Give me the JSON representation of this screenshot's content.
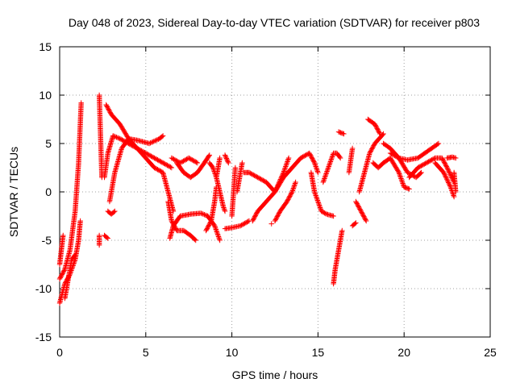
{
  "chart_data": {
    "type": "scatter",
    "title": "Day 048 of 2023, Sidereal Day-to-day VTEC variation (SDTVAR) for receiver p803",
    "xlabel": "GPS time / hours",
    "ylabel": "SDTVAR / TECUs",
    "xlim": [
      0,
      25
    ],
    "ylim": [
      -15,
      15
    ],
    "xticks": [
      "0",
      "5",
      "10",
      "15",
      "20",
      "25"
    ],
    "yticks": [
      "15",
      "10",
      "5",
      "0",
      "-5",
      "-10",
      "-15"
    ],
    "grid": true,
    "marker": "plus",
    "color": "#ff0000",
    "segments": [
      [
        [
          0.0,
          -9
        ],
        [
          0.3,
          -8
        ],
        [
          0.6,
          -6
        ],
        [
          0.9,
          -2
        ],
        [
          1.1,
          3
        ],
        [
          1.25,
          9.2
        ]
      ],
      [
        [
          0.0,
          -11.5
        ],
        [
          0.3,
          -9.5
        ],
        [
          0.6,
          -8.5
        ],
        [
          0.9,
          -7
        ],
        [
          1.1,
          -5
        ],
        [
          1.2,
          -3
        ]
      ],
      [
        [
          0.0,
          -7.5
        ],
        [
          0.1,
          -6
        ],
        [
          0.2,
          -4.5
        ]
      ],
      [
        [
          0.3,
          -11
        ],
        [
          0.5,
          -9
        ],
        [
          0.7,
          -7
        ],
        [
          0.9,
          -6.5
        ]
      ],
      [
        [
          2.3,
          10
        ],
        [
          2.45,
          1.5
        ]
      ],
      [
        [
          2.3,
          -4.5
        ],
        [
          2.3,
          -5.5
        ]
      ],
      [
        [
          2.6,
          -4.5
        ],
        [
          2.8,
          -4.8
        ]
      ],
      [
        [
          2.8,
          -2
        ],
        [
          3.0,
          -2.3
        ],
        [
          3.2,
          -2
        ]
      ],
      [
        [
          2.6,
          1.5
        ],
        [
          2.8,
          4
        ],
        [
          3.1,
          5.8
        ],
        [
          3.5,
          5.5
        ],
        [
          4.0,
          5
        ],
        [
          5.0,
          4
        ],
        [
          6.0,
          3
        ],
        [
          6.5,
          2.5
        ]
      ],
      [
        [
          2.7,
          9
        ],
        [
          3.0,
          8
        ],
        [
          3.5,
          7
        ],
        [
          4.0,
          5.5
        ],
        [
          4.5,
          4.5
        ],
        [
          5.0,
          3.5
        ],
        [
          5.5,
          2.5
        ],
        [
          6.0,
          2
        ],
        [
          6.3,
          0
        ],
        [
          6.6,
          -2
        ]
      ],
      [
        [
          2.9,
          -1
        ],
        [
          3.2,
          2
        ],
        [
          3.6,
          4.5
        ],
        [
          4.0,
          5.5
        ],
        [
          4.6,
          5.3
        ],
        [
          5.2,
          5
        ],
        [
          5.8,
          5.5
        ],
        [
          6.0,
          5.8
        ]
      ],
      [
        [
          6.3,
          -1
        ],
        [
          6.5,
          -3
        ],
        [
          6.8,
          -4
        ],
        [
          7.2,
          -4
        ],
        [
          7.6,
          -4.5
        ],
        [
          7.9,
          -5
        ]
      ],
      [
        [
          6.4,
          -4.8
        ],
        [
          6.6,
          -3.5
        ],
        [
          7.0,
          -2.5
        ],
        [
          7.6,
          -2.3
        ],
        [
          8.2,
          -2.2
        ],
        [
          8.6,
          -2.5
        ]
      ],
      [
        [
          6.5,
          3.5
        ],
        [
          7.0,
          3
        ],
        [
          7.5,
          3.5
        ],
        [
          8.0,
          3
        ]
      ],
      [
        [
          6.8,
          3
        ],
        [
          7.2,
          2
        ],
        [
          7.6,
          1.5
        ],
        [
          8.0,
          2
        ],
        [
          8.4,
          3
        ],
        [
          8.7,
          3.8
        ]
      ],
      [
        [
          8.6,
          -2.5
        ],
        [
          9.0,
          -3.5
        ],
        [
          9.3,
          -5
        ]
      ],
      [
        [
          8.5,
          -4
        ],
        [
          8.8,
          -3
        ],
        [
          9.0,
          -1
        ],
        [
          9.1,
          0.5
        ]
      ],
      [
        [
          8.7,
          3
        ],
        [
          8.9,
          2.5
        ],
        [
          9.1,
          1.5
        ],
        [
          9.3,
          0
        ],
        [
          9.5,
          -1.5
        ],
        [
          9.6,
          -2
        ]
      ],
      [
        [
          9.1,
          1.5
        ],
        [
          9.3,
          3.5
        ]
      ],
      [
        [
          9.6,
          3.8
        ],
        [
          9.8,
          3
        ]
      ],
      [
        [
          9.6,
          -3.8
        ],
        [
          10.0,
          -3.7
        ],
        [
          10.5,
          -3.5
        ],
        [
          11.0,
          -3
        ]
      ],
      [
        [
          10.0,
          -2.5
        ],
        [
          10.1,
          0
        ],
        [
          10.2,
          2.5
        ]
      ],
      [
        [
          10.3,
          0
        ],
        [
          10.5,
          2
        ],
        [
          10.6,
          3
        ]
      ],
      [
        [
          10.7,
          2
        ],
        [
          11.0,
          2
        ],
        [
          11.5,
          1.5
        ],
        [
          12.0,
          1
        ],
        [
          12.5,
          0
        ],
        [
          13.0,
          2
        ],
        [
          13.3,
          3.5
        ]
      ],
      [
        [
          11.2,
          -3
        ],
        [
          11.5,
          -2
        ],
        [
          12.0,
          -1
        ],
        [
          12.5,
          0
        ],
        [
          13.0,
          1.5
        ],
        [
          13.5,
          2.5
        ],
        [
          14.0,
          3.5
        ],
        [
          14.5,
          4
        ],
        [
          14.8,
          3
        ]
      ],
      [
        [
          12.5,
          -3
        ],
        [
          12.8,
          -2
        ],
        [
          13.2,
          -1
        ],
        [
          13.5,
          0
        ],
        [
          13.7,
          1
        ]
      ],
      [
        [
          12.3,
          -3.3
        ]
      ],
      [
        [
          14.8,
          3
        ],
        [
          15.0,
          2
        ]
      ],
      [
        [
          14.6,
          2
        ],
        [
          14.8,
          0
        ],
        [
          15.0,
          -1
        ],
        [
          15.2,
          -2
        ],
        [
          15.5,
          -2.3
        ],
        [
          15.9,
          -2.5
        ]
      ],
      [
        [
          15.3,
          1
        ],
        [
          15.6,
          2.5
        ],
        [
          15.9,
          4
        ],
        [
          16.1,
          4
        ],
        [
          16.3,
          3.5
        ]
      ],
      [
        [
          15.9,
          -9.5
        ],
        [
          16.0,
          -8
        ],
        [
          16.2,
          -6
        ],
        [
          16.4,
          -4
        ]
      ],
      [
        [
          16.2,
          6.2
        ],
        [
          16.5,
          6
        ]
      ],
      [
        [
          17.0,
          -3.5
        ],
        [
          17.2,
          -3.2
        ]
      ],
      [
        [
          16.8,
          2
        ],
        [
          17.0,
          4.5
        ]
      ],
      [
        [
          17.2,
          -1
        ],
        [
          17.5,
          -2
        ],
        [
          17.8,
          -3
        ]
      ],
      [
        [
          17.4,
          0
        ],
        [
          17.7,
          2
        ],
        [
          18.0,
          4
        ],
        [
          18.3,
          5
        ],
        [
          18.8,
          6
        ]
      ],
      [
        [
          17.9,
          7.5
        ],
        [
          18.3,
          7
        ],
        [
          18.6,
          6
        ]
      ],
      [
        [
          18.2,
          3
        ],
        [
          18.5,
          2.5
        ],
        [
          18.8,
          3
        ],
        [
          19.2,
          3.5
        ],
        [
          19.7,
          2
        ],
        [
          20.0,
          0.5
        ],
        [
          20.3,
          0.3
        ]
      ],
      [
        [
          18.8,
          5
        ],
        [
          19.2,
          4.5
        ],
        [
          19.7,
          3.5
        ],
        [
          20.2,
          2
        ],
        [
          20.7,
          1.5
        ],
        [
          21.0,
          2
        ]
      ],
      [
        [
          19.2,
          4
        ],
        [
          19.7,
          3.5
        ],
        [
          20.2,
          3.3
        ],
        [
          20.8,
          3.5
        ],
        [
          21.2,
          4
        ],
        [
          21.6,
          4.5
        ],
        [
          22.0,
          5
        ]
      ],
      [
        [
          20.3,
          1.5
        ],
        [
          20.8,
          2.5
        ],
        [
          21.3,
          3
        ],
        [
          21.8,
          3.5
        ],
        [
          22.2,
          3.5
        ],
        [
          22.5,
          2.5
        ],
        [
          22.9,
          1
        ]
      ],
      [
        [
          21.8,
          3
        ],
        [
          22.3,
          2
        ],
        [
          22.7,
          0.5
        ],
        [
          22.9,
          -0.5
        ]
      ],
      [
        [
          22.5,
          3.5
        ],
        [
          22.8,
          3.6
        ],
        [
          23.0,
          3.5
        ]
      ],
      [
        [
          22.9,
          2
        ],
        [
          23.0,
          0
        ]
      ]
    ]
  }
}
